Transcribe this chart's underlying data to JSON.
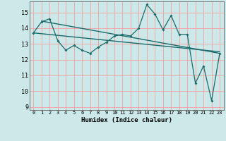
{
  "title": "",
  "xlabel": "Humidex (Indice chaleur)",
  "ylabel": "",
  "bg_color": "#cce8e8",
  "grid_color": "#f5a0a0",
  "line_color": "#1a6b6b",
  "xlim": [
    -0.5,
    23.5
  ],
  "ylim": [
    8.8,
    15.7
  ],
  "yticks": [
    9,
    10,
    11,
    12,
    13,
    14,
    15
  ],
  "xticks": [
    0,
    1,
    2,
    3,
    4,
    5,
    6,
    7,
    8,
    9,
    10,
    11,
    12,
    13,
    14,
    15,
    16,
    17,
    18,
    19,
    20,
    21,
    22,
    23
  ],
  "series1": [
    13.7,
    14.4,
    14.6,
    13.2,
    12.6,
    12.9,
    12.6,
    12.4,
    12.8,
    13.1,
    13.5,
    13.6,
    13.5,
    14.0,
    15.5,
    14.9,
    13.9,
    14.8,
    13.6,
    13.6,
    10.5,
    11.6,
    9.4,
    12.4
  ],
  "trend1_x": [
    1,
    23
  ],
  "trend1_y": [
    14.45,
    12.4
  ],
  "trend2_x": [
    0,
    23
  ],
  "trend2_y": [
    13.7,
    12.5
  ]
}
